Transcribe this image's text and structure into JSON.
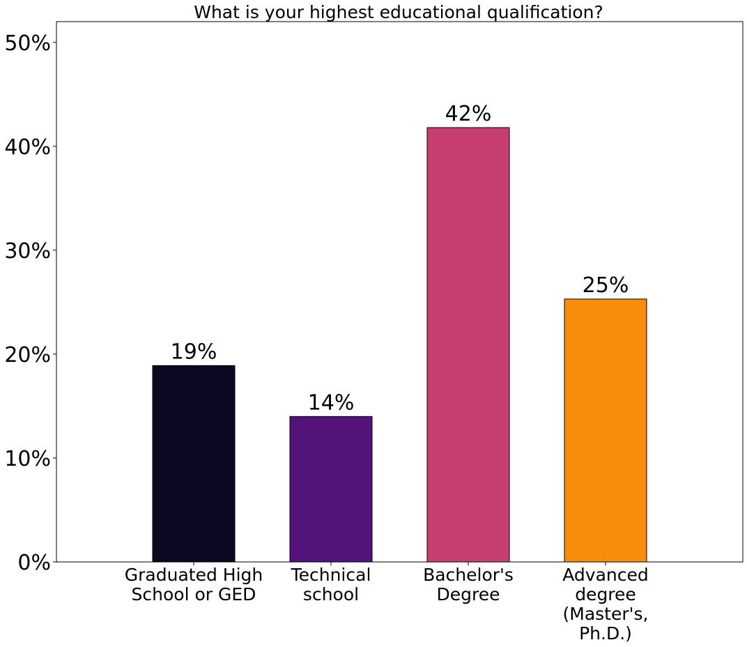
{
  "chart_data": {
    "type": "bar",
    "title": "What is your highest educational qualification?",
    "xlabel": "",
    "ylabel": "",
    "categories": [
      [
        "Graduated High",
        "School or GED"
      ],
      [
        "Technical",
        "school"
      ],
      [
        "Bachelor's",
        "Degree"
      ],
      [
        "Advanced",
        "degree",
        "(Master's,",
        "Ph.D.)"
      ]
    ],
    "values": [
      18.9,
      14.0,
      41.8,
      25.3
    ],
    "data_labels": [
      "19%",
      "14%",
      "42%",
      "25%"
    ],
    "colors": [
      "#0b0922",
      "#54137a",
      "#c73e72",
      "#f88c0c"
    ],
    "ylim": [
      0,
      52
    ],
    "yticks": [
      0,
      10,
      20,
      30,
      40,
      50
    ],
    "ytick_labels": [
      "0%",
      "10%",
      "20%",
      "30%",
      "40%",
      "50%"
    ],
    "grid": false,
    "legend": "none"
  }
}
